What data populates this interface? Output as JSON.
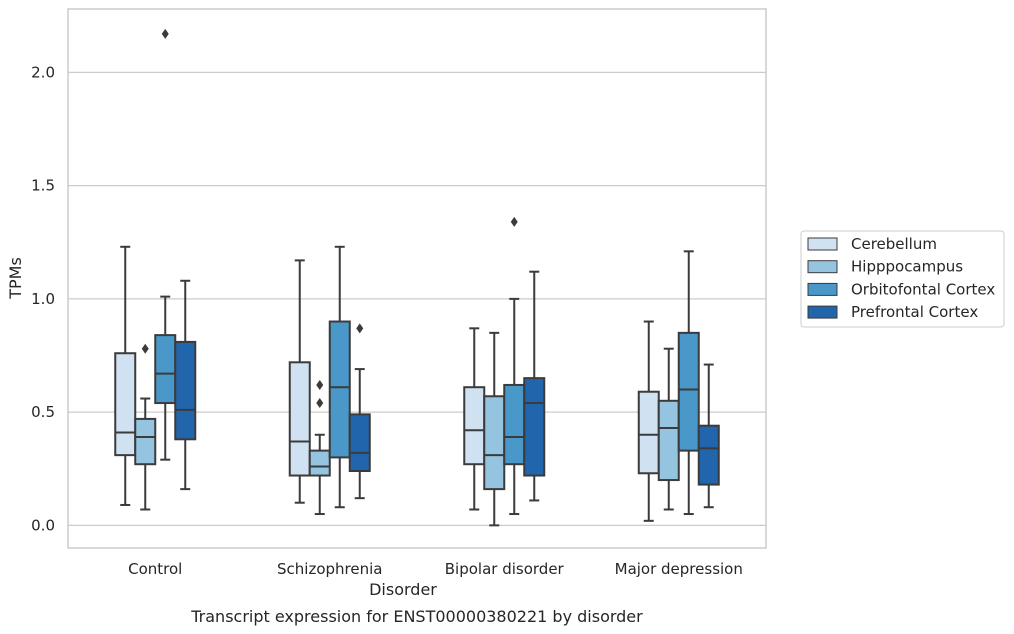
{
  "chart_data": {
    "type": "box",
    "title": "",
    "caption": "Transcript expression for ENST00000380221 by disorder",
    "xlabel": "Disorder",
    "ylabel": "TPMs",
    "ylim": [
      -0.1,
      2.28
    ],
    "yticks": [
      0.0,
      0.5,
      1.0,
      1.5,
      2.0
    ],
    "ytick_labels": [
      "0.0",
      "0.5",
      "1.0",
      "1.5",
      "2.0"
    ],
    "grid": "horizontal",
    "legend_position": "right",
    "categories": [
      "Control",
      "Schizophrenia",
      "Bipolar disorder",
      "Major depression"
    ],
    "series": [
      {
        "name": "Cerebellum",
        "color": "#d0e1f2",
        "boxes": [
          {
            "whislo": 0.09,
            "q1": 0.31,
            "med": 0.41,
            "q3": 0.76,
            "whishi": 1.23,
            "fliers": []
          },
          {
            "whislo": 0.1,
            "q1": 0.22,
            "med": 0.37,
            "q3": 0.72,
            "whishi": 1.17,
            "fliers": []
          },
          {
            "whislo": 0.07,
            "q1": 0.27,
            "med": 0.42,
            "q3": 0.61,
            "whishi": 0.87,
            "fliers": []
          },
          {
            "whislo": 0.02,
            "q1": 0.23,
            "med": 0.4,
            "q3": 0.59,
            "whishi": 0.9,
            "fliers": []
          }
        ]
      },
      {
        "name": "Hipppocampus",
        "color": "#94c4df",
        "boxes": [
          {
            "whislo": 0.07,
            "q1": 0.27,
            "med": 0.39,
            "q3": 0.47,
            "whishi": 0.56,
            "fliers": [
              0.78
            ]
          },
          {
            "whislo": 0.05,
            "q1": 0.22,
            "med": 0.26,
            "q3": 0.33,
            "whishi": 0.4,
            "fliers": [
              0.54,
              0.62
            ]
          },
          {
            "whislo": 0.0,
            "q1": 0.16,
            "med": 0.31,
            "q3": 0.57,
            "whishi": 0.85,
            "fliers": []
          },
          {
            "whislo": 0.07,
            "q1": 0.2,
            "med": 0.43,
            "q3": 0.55,
            "whishi": 0.78,
            "fliers": []
          }
        ]
      },
      {
        "name": "Orbitofontal Cortex",
        "color": "#4a98c9",
        "boxes": [
          {
            "whislo": 0.29,
            "q1": 0.54,
            "med": 0.67,
            "q3": 0.84,
            "whishi": 1.01,
            "fliers": [
              2.17
            ]
          },
          {
            "whislo": 0.08,
            "q1": 0.3,
            "med": 0.61,
            "q3": 0.9,
            "whishi": 1.23,
            "fliers": []
          },
          {
            "whislo": 0.05,
            "q1": 0.27,
            "med": 0.39,
            "q3": 0.62,
            "whishi": 1.0,
            "fliers": [
              1.34
            ]
          },
          {
            "whislo": 0.05,
            "q1": 0.33,
            "med": 0.6,
            "q3": 0.85,
            "whishi": 1.21,
            "fliers": []
          }
        ]
      },
      {
        "name": "Prefrontal Cortex",
        "color": "#2166ac",
        "boxes": [
          {
            "whislo": 0.16,
            "q1": 0.38,
            "med": 0.51,
            "q3": 0.81,
            "whishi": 1.08,
            "fliers": []
          },
          {
            "whislo": 0.12,
            "q1": 0.24,
            "med": 0.32,
            "q3": 0.49,
            "whishi": 0.69,
            "fliers": [
              0.87
            ]
          },
          {
            "whislo": 0.11,
            "q1": 0.22,
            "med": 0.54,
            "q3": 0.65,
            "whishi": 1.12,
            "fliers": []
          },
          {
            "whislo": 0.08,
            "q1": 0.18,
            "med": 0.34,
            "q3": 0.44,
            "whishi": 0.71,
            "fliers": []
          }
        ]
      }
    ]
  }
}
